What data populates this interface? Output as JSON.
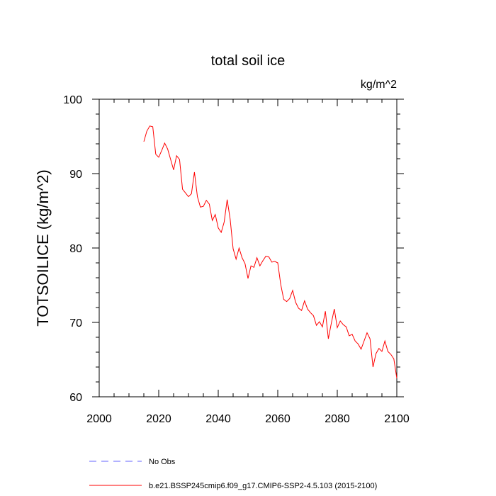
{
  "chart_data": {
    "type": "line",
    "title": "total soil ice",
    "units": "kg/m^2",
    "ylabel": "TOTSOILICE  (kg/m^2)",
    "xlabel": "",
    "xlim": [
      2000,
      2100
    ],
    "ylim": [
      60,
      100
    ],
    "xticks": [
      2000,
      2020,
      2040,
      2060,
      2080,
      2100
    ],
    "yticks": [
      60,
      70,
      80,
      90,
      100
    ],
    "xtick_labels": [
      "2000",
      "2020",
      "2040",
      "2060",
      "2080",
      "2100"
    ],
    "ytick_labels": [
      "60",
      "70",
      "80",
      "90",
      "100"
    ],
    "legend_position": "bottom",
    "series": [
      {
        "name": "b.e21.BSSP245cmip6.f09_g17.CMIP6-SSP2-4.5.103 (2015-2100)",
        "color": "#ff0000",
        "style": "solid",
        "x": [
          2015,
          2016,
          2017,
          2018,
          2019,
          2020,
          2021,
          2022,
          2023,
          2024,
          2025,
          2026,
          2027,
          2028,
          2029,
          2030,
          2031,
          2032,
          2033,
          2034,
          2035,
          2036,
          2037,
          2038,
          2039,
          2040,
          2041,
          2042,
          2043,
          2044,
          2045,
          2046,
          2047,
          2048,
          2049,
          2050,
          2051,
          2052,
          2053,
          2054,
          2055,
          2056,
          2057,
          2058,
          2059,
          2060,
          2061,
          2062,
          2063,
          2064,
          2065,
          2066,
          2067,
          2068,
          2069,
          2070,
          2071,
          2072,
          2073,
          2074,
          2075,
          2076,
          2077,
          2078,
          2079,
          2080,
          2081,
          2082,
          2083,
          2084,
          2085,
          2086,
          2087,
          2088,
          2089,
          2090,
          2091,
          2092,
          2093,
          2094,
          2095,
          2096,
          2097,
          2098,
          2099,
          2100
        ],
        "values": [
          94.3,
          95.7,
          96.4,
          96.3,
          92.6,
          92.2,
          93.1,
          94.1,
          93.3,
          91.9,
          90.5,
          92.4,
          91.9,
          87.9,
          87.4,
          86.9,
          87.3,
          90.2,
          86.9,
          85.5,
          85.6,
          86.4,
          85.9,
          83.7,
          84.5,
          82.7,
          82.1,
          83.5,
          86.5,
          83.9,
          79.9,
          78.5,
          80.0,
          78.7,
          77.9,
          75.9,
          77.6,
          77.4,
          78.7,
          77.6,
          78.3,
          78.9,
          78.8,
          78.1,
          78.2,
          78.0,
          75.1,
          73.1,
          72.8,
          73.2,
          74.3,
          72.7,
          71.9,
          71.6,
          72.9,
          71.8,
          71.3,
          70.9,
          69.6,
          70.1,
          69.4,
          71.5,
          67.8,
          69.9,
          71.8,
          69.3,
          70.2,
          69.7,
          69.4,
          68.2,
          68.4,
          67.5,
          67.1,
          66.4,
          67.5,
          68.6,
          67.8,
          64.0,
          65.8,
          66.5,
          66.1,
          67.5,
          66.1,
          65.7,
          65.1,
          62.5
        ]
      },
      {
        "name": "No Obs",
        "color": "#6666ff",
        "style": "dashed",
        "x": [],
        "values": []
      }
    ]
  }
}
